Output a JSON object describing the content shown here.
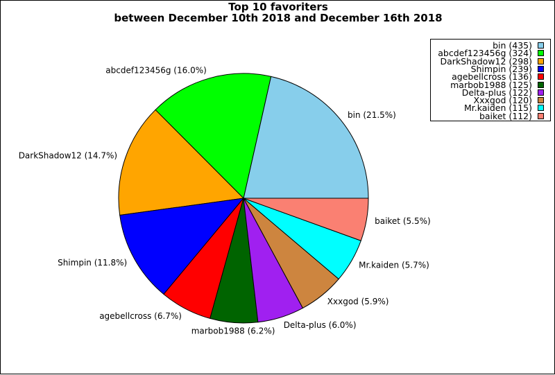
{
  "chart_data": {
    "type": "pie",
    "title_line1": "Top 10 favoriters",
    "title_line2": "between December 10th 2018 and December 16th 2018",
    "slices": [
      {
        "name": "bin",
        "value": 435,
        "percent_label": "bin (21.5%)",
        "legend_label": "bin (435)",
        "color": "#87CEEB"
      },
      {
        "name": "abcdef123456g",
        "value": 324,
        "percent_label": "abcdef123456g (16.0%)",
        "legend_label": "abcdef123456g (324)",
        "color": "#00FF00"
      },
      {
        "name": "DarkShadow12",
        "value": 298,
        "percent_label": "DarkShadow12 (14.7%)",
        "legend_label": "DarkShadow12 (298)",
        "color": "#FFA500"
      },
      {
        "name": "Shimpin",
        "value": 239,
        "percent_label": "Shimpin (11.8%)",
        "legend_label": "Shimpin (239)",
        "color": "#0000FF"
      },
      {
        "name": "agebellcross",
        "value": 136,
        "percent_label": "agebellcross (6.7%)",
        "legend_label": "agebellcross (136)",
        "color": "#FF0000"
      },
      {
        "name": "marbob1988",
        "value": 125,
        "percent_label": "marbob1988 (6.2%)",
        "legend_label": "marbob1988 (125)",
        "color": "#006400"
      },
      {
        "name": "Delta-plus",
        "value": 122,
        "percent_label": "Delta-plus (6.0%)",
        "legend_label": "Delta-plus (122)",
        "color": "#A020F0"
      },
      {
        "name": "Xxxgod",
        "value": 120,
        "percent_label": "Xxxgod (5.9%)",
        "legend_label": "Xxxgod (120)",
        "color": "#CD853F"
      },
      {
        "name": "Mr.kaiden",
        "value": 115,
        "percent_label": "Mr.kaiden (5.7%)",
        "legend_label": "Mr.kaiden (115)",
        "color": "#00FFFF"
      },
      {
        "name": "baiket",
        "value": 112,
        "percent_label": "baiket (5.5%)",
        "legend_label": "baiket (112)",
        "color": "#FA8072"
      }
    ],
    "legend_position": "top-right",
    "start_direction": "east",
    "direction": "counterclockwise"
  }
}
